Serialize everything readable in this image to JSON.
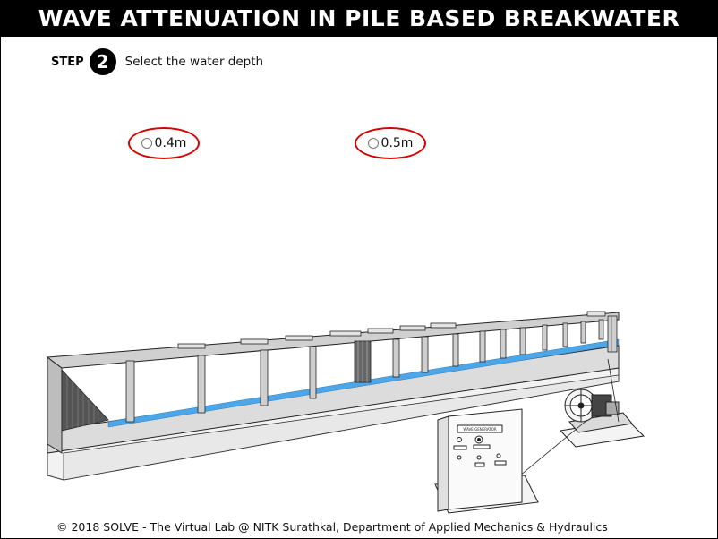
{
  "title": "WAVE ATTENUATION IN PILE BASED BREAKWATER",
  "step": {
    "label": "STEP",
    "number": "2",
    "instruction": "Select the water depth"
  },
  "options": [
    {
      "label": "0.4m",
      "selected": false
    },
    {
      "label": "0.5m",
      "selected": false
    }
  ],
  "equipment": {
    "panel_label": "WAVE GENERATOR"
  },
  "footer": "© 2018 SOLVE - The Virtual Lab @ NITK Surathkal, Department of Applied Mechanics & Hydraulics",
  "colors": {
    "title_bg": "#000000",
    "highlight": "#d60000",
    "water": "#4da6e8"
  }
}
